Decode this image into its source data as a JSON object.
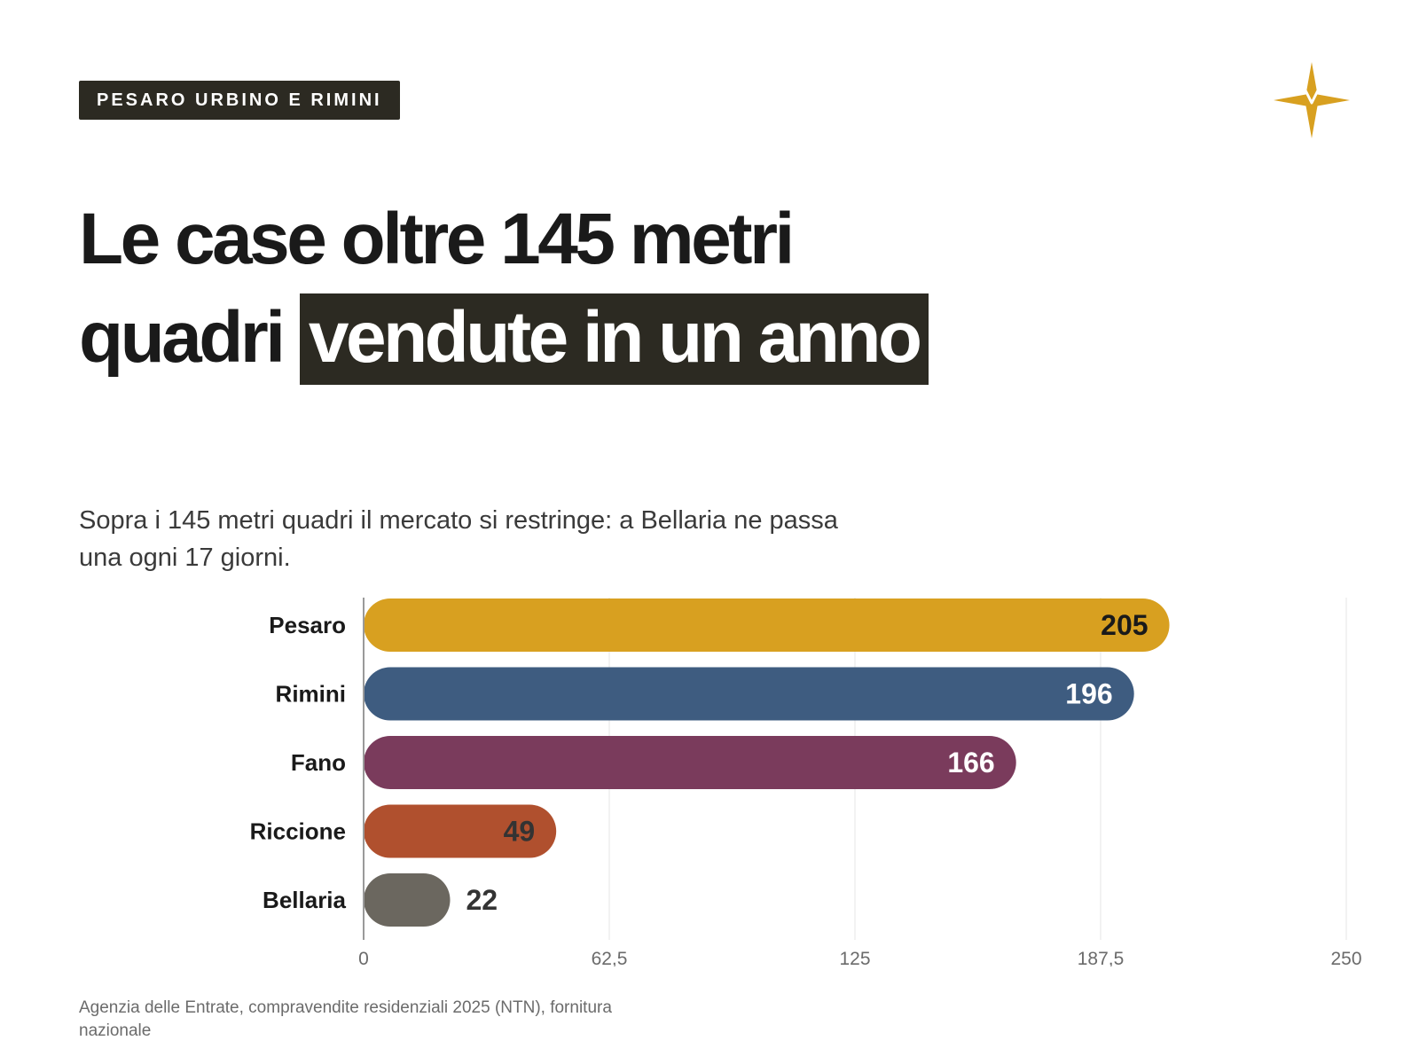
{
  "header": {
    "tag": "PESARO URBINO E RIMINI",
    "logo_icon": "star-compass-icon"
  },
  "title": {
    "plain": "Le case oltre 145 metri quadri ",
    "highlight": "vendute in un anno"
  },
  "subtitle": "Sopra i 145 metri quadri il mercato si restringe: a Bellaria ne passa una ogni 17 giorni.",
  "footer": "Agenzia delle Entrate, compravendite residenziali 2025 (NTN), fornitura nazionale",
  "chart_data": {
    "type": "bar",
    "orientation": "horizontal",
    "categories": [
      "Pesaro",
      "Rimini",
      "Fano",
      "Riccione",
      "Bellaria"
    ],
    "values": [
      205,
      196,
      166,
      49,
      22
    ],
    "value_labels": [
      "205",
      "196",
      "166",
      "49",
      "22"
    ],
    "colors": [
      "#d8a020",
      "#3e5c80",
      "#7a3b5c",
      "#b0502e",
      "#6b675f"
    ],
    "label_colors": [
      "#1a1a1a",
      "#ffffff",
      "#ffffff",
      "#333333",
      "#333333"
    ],
    "xlim": [
      0,
      250
    ],
    "xticks": [
      0,
      62.5,
      125,
      187.5,
      250
    ],
    "xtick_labels": [
      "0",
      "62,5",
      "125",
      "187,5",
      "250"
    ],
    "grid": true
  }
}
